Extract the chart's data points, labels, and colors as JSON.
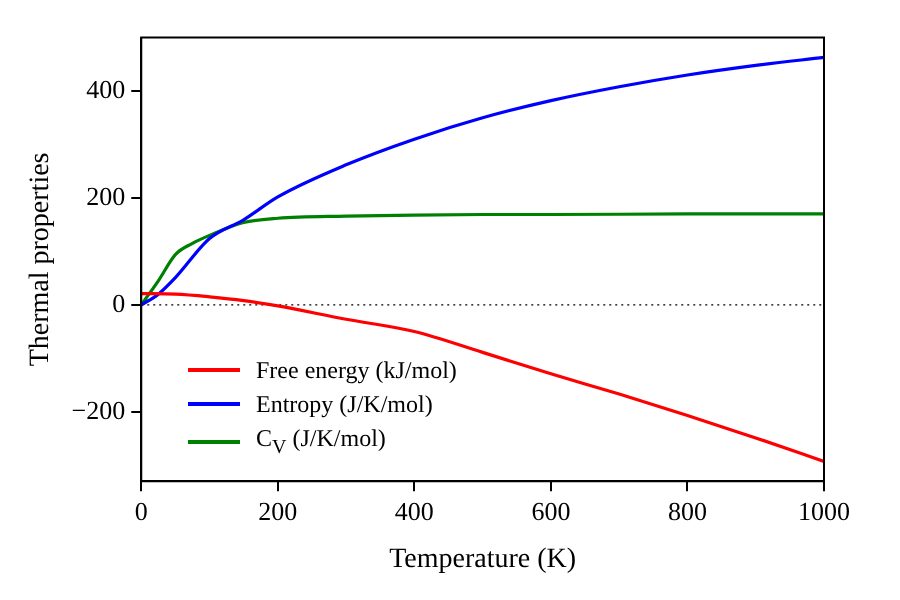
{
  "chart_data": {
    "type": "line",
    "xlabel": "Temperature (K)",
    "ylabel": "Thermal properties",
    "xlim": [
      0,
      1000
    ],
    "xticks": [
      0,
      200,
      400,
      600,
      800,
      1000
    ],
    "ylim": [
      -330,
      500
    ],
    "yticks": [
      -200,
      0,
      200,
      400
    ],
    "legend": "bottom left",
    "grid": false,
    "marker": "none",
    "line_style": "solid",
    "ref_lines": [
      {
        "axis": "y",
        "value": 0,
        "color": "#000000",
        "line_style": "dotted"
      }
    ],
    "series": [
      {
        "name": "Free energy (kJ/mol)",
        "color": "#ff0000",
        "x": [
          0,
          50,
          100,
          150,
          200,
          300,
          400,
          500,
          600,
          700,
          800,
          900,
          1000
        ],
        "values": [
          21,
          20,
          15,
          8,
          -2,
          -27,
          -50,
          -89,
          -129,
          -167,
          -207,
          -249,
          -293
        ]
      },
      {
        "name": "Entropy (J/K/mol)",
        "color": "#0000ff",
        "x": [
          0,
          25,
          50,
          100,
          150,
          200,
          300,
          400,
          500,
          600,
          700,
          800,
          900,
          1000
        ],
        "values": [
          0,
          20,
          51,
          124,
          159,
          202,
          262,
          310,
          350,
          382,
          408,
          430,
          448,
          463
        ]
      },
      {
        "name": "C$_{V}$ (J/K/mol)",
        "color": "#008000",
        "x": [
          0,
          25,
          50,
          75,
          100,
          150,
          200,
          300,
          400,
          500,
          600,
          800,
          1000
        ],
        "values": [
          0,
          45,
          94,
          115,
          130,
          154,
          162,
          166,
          168,
          169,
          169,
          170,
          170
        ]
      }
    ]
  }
}
